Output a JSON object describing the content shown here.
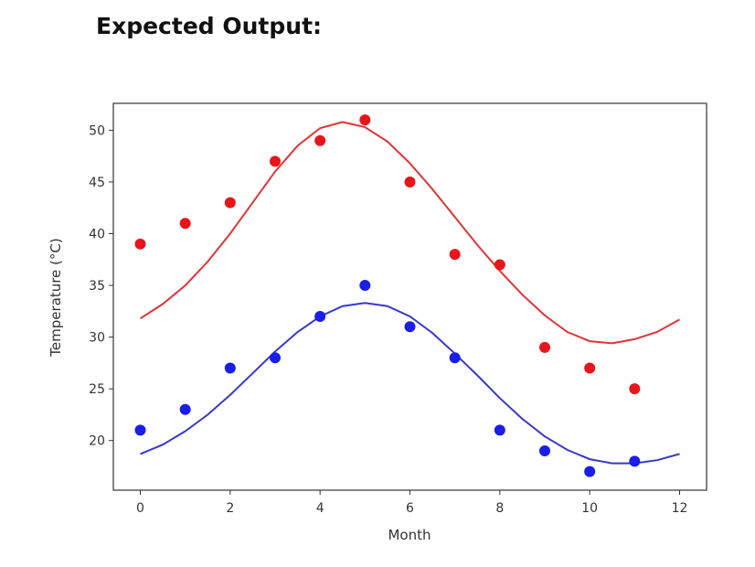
{
  "page": {
    "heading": "Expected Output:"
  },
  "chart_data": {
    "type": "scatter",
    "xlabel": "Month",
    "ylabel": "Temperature (°C)",
    "xlim": [
      -0.6,
      12.6
    ],
    "ylim": [
      15.2,
      52.6
    ],
    "xticks": [
      0,
      2,
      4,
      6,
      8,
      10,
      12
    ],
    "yticks": [
      20,
      25,
      30,
      35,
      40,
      45,
      50
    ],
    "grid": false,
    "series": [
      {
        "color": "#e8161c",
        "points": {
          "x": [
            0,
            1,
            2,
            3,
            4,
            5,
            6,
            7,
            8,
            9,
            10,
            11
          ],
          "y": [
            39,
            41,
            43,
            47,
            49,
            51,
            45,
            38,
            37,
            29,
            27,
            25
          ]
        },
        "fit": {
          "color": "#e03434",
          "x": [
            0,
            0.5,
            1,
            1.5,
            2,
            2.5,
            3,
            3.5,
            4,
            4.5,
            5,
            5.5,
            6,
            6.5,
            7,
            7.5,
            8,
            8.5,
            9,
            9.5,
            10,
            10.5,
            11,
            11.5,
            12
          ],
          "y": [
            31.8,
            33.2,
            35.0,
            37.3,
            40.0,
            43.0,
            46.0,
            48.5,
            50.2,
            50.8,
            50.3,
            48.9,
            46.8,
            44.3,
            41.6,
            38.9,
            36.4,
            34.1,
            32.1,
            30.5,
            29.6,
            29.4,
            29.8,
            30.5,
            31.7
          ]
        }
      },
      {
        "color": "#1a1ee8",
        "points": {
          "x": [
            0,
            1,
            2,
            3,
            4,
            5,
            6,
            7,
            8,
            9,
            10,
            11
          ],
          "y": [
            21,
            23,
            27,
            28,
            32,
            35,
            31,
            28,
            21,
            19,
            17,
            18
          ]
        },
        "fit": {
          "color": "#3838cc",
          "x": [
            0,
            0.5,
            1,
            1.5,
            2,
            2.5,
            3,
            3.5,
            4,
            4.5,
            5,
            5.5,
            6,
            6.5,
            7,
            7.5,
            8,
            8.5,
            9,
            9.5,
            10,
            10.5,
            11,
            11.5,
            12
          ],
          "y": [
            18.7,
            19.6,
            20.9,
            22.5,
            24.4,
            26.5,
            28.6,
            30.5,
            32.0,
            33.0,
            33.3,
            33.0,
            32.0,
            30.4,
            28.4,
            26.3,
            24.1,
            22.1,
            20.4,
            19.1,
            18.2,
            17.8,
            17.8,
            18.1,
            18.7
          ]
        }
      }
    ]
  }
}
